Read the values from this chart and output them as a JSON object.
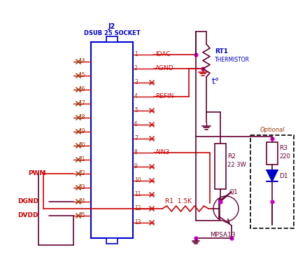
{
  "background_color": "#ffffff",
  "connector_color": "#0000cc",
  "wire_red_color": "#cc0000",
  "wire_dark_color": "#660033",
  "label_blue_color": "#0000cc",
  "label_brown_color": "#993300",
  "component_color": "#0000cc",
  "node_color": "#cc00cc",
  "pwm_label": "PWM",
  "dgnd_label": "DGND",
  "dvdd_label": "DVDD"
}
